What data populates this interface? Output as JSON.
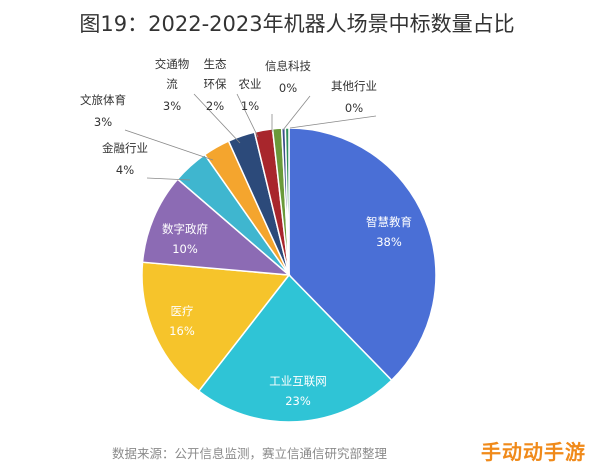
{
  "chart_data": {
    "type": "pie",
    "title": "图19：2022-2023年机器人场景中标数量占比",
    "source": "数据来源：公开信息监测，赛立信通信研究部整理",
    "slices": [
      {
        "label": "智慧教育",
        "value": 38,
        "display": "38%",
        "color": "#4a6fd6"
      },
      {
        "label": "工业互联网",
        "value": 23,
        "display": "23%",
        "color": "#2fc4d6"
      },
      {
        "label": "医疗",
        "value": 16,
        "display": "16%",
        "color": "#f6c42b"
      },
      {
        "label": "数字政府",
        "value": 10,
        "display": "10%",
        "color": "#8c6bb4"
      },
      {
        "label": "金融行业",
        "value": 4,
        "display": "4%",
        "color": "#3fb6cf"
      },
      {
        "label": "文旅体育",
        "value": 3,
        "display": "3%",
        "color": "#f4a52e"
      },
      {
        "label": "交通物流",
        "value": 3,
        "display": "3%",
        "color": "#2c4a7a"
      },
      {
        "label": "生态环保",
        "value": 2,
        "display": "2%",
        "color": "#a8262c"
      },
      {
        "label": "农业",
        "value": 1,
        "display": "1%",
        "color": "#6a9a3a"
      },
      {
        "label": "信息科技",
        "value": 0.4,
        "display": "0%",
        "color": "#3c4f8a"
      },
      {
        "label": "其他行业",
        "value": 0.4,
        "display": "0%",
        "color": "#2f8f5a"
      }
    ]
  },
  "watermark": "手动动手游"
}
